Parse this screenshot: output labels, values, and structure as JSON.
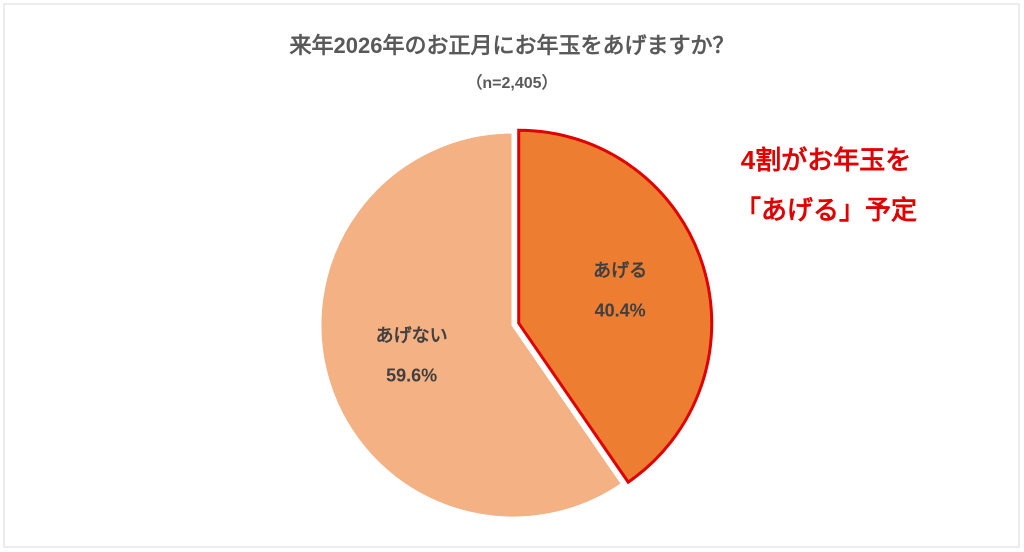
{
  "chart_data": {
    "type": "pie",
    "title": "来年2026年のお正月にお年玉をあげますか？",
    "subtitle": "（n=2,405）",
    "categories": [
      "あげる",
      "あげない"
    ],
    "values": [
      40.4,
      59.6
    ],
    "value_labels": [
      "40.4%",
      "59.6%"
    ],
    "colors": [
      "#ed7d31",
      "#f4b183"
    ],
    "highlight_color": "#e00000",
    "annotation": [
      "4割がお年玉を",
      "「あげる」予定"
    ]
  }
}
